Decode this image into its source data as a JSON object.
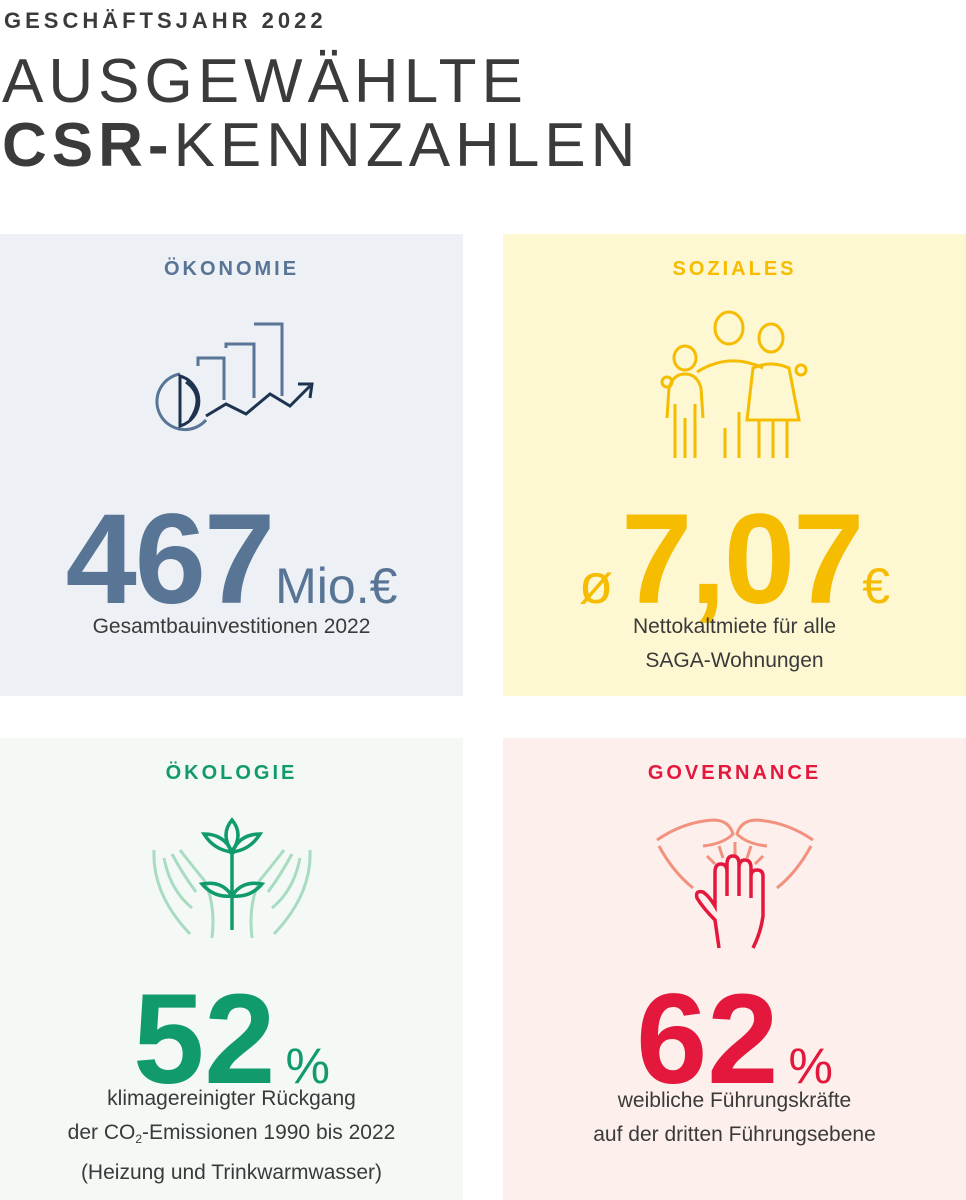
{
  "header": {
    "eyebrow": "GESCHÄFTSJAHR 2022",
    "title_line1": "AUSGEWÄHLTE",
    "title_line2_bold": "CSR-",
    "title_line2_light": "KENNZAHLEN"
  },
  "cards": {
    "oekonomie": {
      "title": "ÖKONOMIE",
      "icon": "chart-growth-icon",
      "value": "467",
      "unit": "Mio.€",
      "desc_line1": "Gesamtbauinvestitionen 2022",
      "color": "#587595",
      "background": "#edf0f4"
    },
    "soziales": {
      "title": "SOZIALES",
      "icon": "family-icon",
      "prefix": "ø",
      "value": "7,07",
      "unit": "€",
      "desc_line1": "Nettokaltmiete für alle",
      "desc_line2": "SAGA-Wohnungen",
      "color": "#f6bc00",
      "background": "#fdf7d2"
    },
    "oekologie": {
      "title": "ÖKOLOGIE",
      "icon": "plant-hands-icon",
      "value": "52",
      "unit": "%",
      "desc_line1": "klimagereinigter Rückgang",
      "desc_line2_pre": "der CO",
      "desc_line2_sub": "2",
      "desc_line2_post": "-Emissionen 1990 bis 2022",
      "desc_line3": "(Heizung und Trinkwarmwasser)",
      "color": "#119b6d",
      "background": "#f4f9f5"
    },
    "governance": {
      "title": "GOVERNANCE",
      "icon": "hands-together-icon",
      "value": "62",
      "unit": "%",
      "desc_line1": "weibliche Führungskräfte",
      "desc_line2": "auf der dritten Führungsebene",
      "color": "#e3183c",
      "background": "#fcefec"
    }
  }
}
